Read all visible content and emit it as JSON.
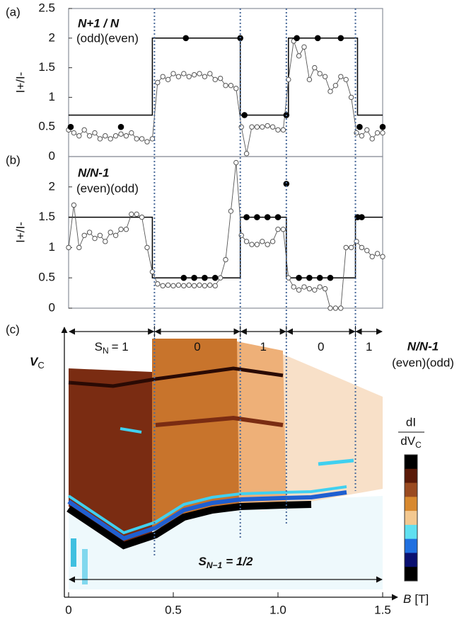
{
  "chart_data": [
    {
      "type": "line",
      "panel": "(a)",
      "ylabel": "I+/I-",
      "annotation": {
        "title": "N+1 / N",
        "subtitle": "(odd)(even)"
      },
      "xlim": [
        0,
        1.5
      ],
      "ylim": [
        0,
        2.5
      ],
      "yticks": [
        0,
        0.5,
        1,
        1.5,
        2,
        2.5
      ],
      "series": [
        {
          "style": "step",
          "color": "#000000",
          "x": [
            0,
            0.4,
            0.4,
            0.82,
            0.82,
            1.05,
            1.05,
            1.38,
            1.38,
            1.5
          ],
          "values": [
            0.7,
            0.7,
            2,
            2,
            0.7,
            0.7,
            2,
            2,
            0.7,
            0.7
          ]
        },
        {
          "style": "open",
          "color": "#555555",
          "x": [
            0,
            0.025,
            0.05,
            0.075,
            0.1,
            0.125,
            0.15,
            0.175,
            0.2,
            0.225,
            0.25,
            0.275,
            0.3,
            0.325,
            0.35,
            0.375,
            0.4,
            0.425,
            0.45,
            0.475,
            0.5,
            0.525,
            0.55,
            0.575,
            0.6,
            0.625,
            0.65,
            0.675,
            0.7,
            0.725,
            0.75,
            0.775,
            0.8,
            0.825,
            0.85,
            0.875,
            0.9,
            0.925,
            0.95,
            0.975,
            1.0,
            1.025,
            1.05,
            1.075,
            1.1,
            1.125,
            1.15,
            1.175,
            1.2,
            1.225,
            1.25,
            1.275,
            1.3,
            1.325,
            1.35,
            1.375,
            1.4,
            1.425,
            1.45,
            1.475,
            1.5
          ],
          "values": [
            0.45,
            0.4,
            0.35,
            0.45,
            0.35,
            0.4,
            0.3,
            0.35,
            0.3,
            0.35,
            0.38,
            0.35,
            0.4,
            0.3,
            0.3,
            0.25,
            0.3,
            1.25,
            1.35,
            1.3,
            1.4,
            1.35,
            1.4,
            1.35,
            1.38,
            1.4,
            1.35,
            1.4,
            1.3,
            1.32,
            1.2,
            1.2,
            1.15,
            0.5,
            0.05,
            0.5,
            0.5,
            0.5,
            0.52,
            0.5,
            0.45,
            0.45,
            1.3,
            1.95,
            1.7,
            1.85,
            1.3,
            1.5,
            1.4,
            1.35,
            1.1,
            1.2,
            1.35,
            1.3,
            1.0,
            0.4,
            0.35,
            0.45,
            0.3,
            0.4,
            0.4
          ]
        },
        {
          "style": "filled",
          "color": "#000000",
          "x": [
            0.01,
            0.25,
            0.56,
            0.82,
            0.84,
            1.04,
            1.09,
            1.19,
            1.3,
            1.39,
            1.5
          ],
          "values": [
            0.5,
            0.5,
            2,
            2,
            0.7,
            0.7,
            2,
            2,
            2,
            0.5,
            0.5
          ]
        }
      ]
    },
    {
      "type": "line",
      "panel": "(b)",
      "ylabel": "I+/I-",
      "annotation": {
        "title": "N/N-1",
        "subtitle": "(even)(odd)"
      },
      "xlim": [
        0,
        1.5
      ],
      "ylim": [
        0,
        2.5
      ],
      "yticks": [
        0,
        0.5,
        1,
        1.5,
        2
      ],
      "series": [
        {
          "style": "step",
          "color": "#000000",
          "x": [
            0,
            0.4,
            0.4,
            0.82,
            0.82,
            1.04,
            1.04,
            1.37,
            1.37,
            1.5
          ],
          "values": [
            1.5,
            1.5,
            0.5,
            0.5,
            1.5,
            1.5,
            0.5,
            0.5,
            1.5,
            1.5
          ]
        },
        {
          "style": "open",
          "color": "#555555",
          "x": [
            0,
            0.025,
            0.05,
            0.075,
            0.1,
            0.125,
            0.15,
            0.175,
            0.2,
            0.225,
            0.25,
            0.275,
            0.3,
            0.325,
            0.35,
            0.375,
            0.4,
            0.425,
            0.45,
            0.475,
            0.5,
            0.525,
            0.55,
            0.575,
            0.6,
            0.625,
            0.65,
            0.675,
            0.7,
            0.725,
            0.75,
            0.775,
            0.8,
            0.825,
            0.85,
            0.875,
            0.9,
            0.925,
            0.95,
            0.975,
            1.0,
            1.025,
            1.05,
            1.075,
            1.1,
            1.125,
            1.15,
            1.175,
            1.2,
            1.225,
            1.25,
            1.275,
            1.3,
            1.325,
            1.35,
            1.375,
            1.4,
            1.425,
            1.45,
            1.475,
            1.5
          ],
          "values": [
            1.0,
            1.7,
            1.0,
            1.2,
            1.25,
            1.15,
            1.2,
            1.1,
            1.25,
            1.2,
            1.3,
            1.3,
            1.55,
            1.55,
            1.5,
            1.0,
            0.6,
            0.4,
            0.37,
            0.38,
            0.37,
            0.38,
            0.37,
            0.38,
            0.37,
            0.38,
            0.37,
            0.38,
            0.37,
            0.5,
            0.8,
            1.6,
            2.4,
            1.2,
            1.1,
            1.05,
            1.05,
            1.1,
            1.05,
            1.1,
            1.3,
            1.3,
            0.5,
            0.35,
            0.3,
            0.35,
            0.32,
            0.3,
            0.35,
            0.32,
            0,
            0,
            0,
            1.0,
            1.0,
            1.1,
            1.0,
            0.95,
            0.85,
            0.9,
            0.85
          ]
        },
        {
          "style": "filled",
          "color": "#000000",
          "x": [
            0.55,
            0.6,
            0.65,
            0.7,
            0.85,
            0.9,
            0.95,
            1.0,
            1.04,
            1.1,
            1.15,
            1.2,
            1.25,
            1.38,
            1.4
          ],
          "values": [
            0.5,
            0.5,
            0.5,
            0.5,
            1.5,
            1.5,
            1.5,
            1.5,
            2.05,
            0.5,
            0.5,
            0.5,
            0.5,
            1.5,
            1.5
          ]
        }
      ]
    },
    {
      "type": "heatmap",
      "panel": "(c)",
      "xlim": [
        0,
        1.5
      ],
      "xticks": [
        0,
        0.5,
        {
          "value": 1,
          "label": "1.0"
        },
        1.5
      ],
      "xlabel": "B",
      "xunit": "[T]",
      "ylabel": {
        "text": "V",
        "sub": "C"
      },
      "boundaries": [
        0,
        0.41,
        0.82,
        1.04,
        1.37,
        1.5
      ],
      "region_symbol": {
        "text": "S",
        "sub": "N"
      },
      "regions": [
        "= 1",
        "0",
        "1",
        "0",
        "1"
      ],
      "ground_state": {
        "text": "S",
        "sub": "N−1",
        "suffix": "= 1/2"
      },
      "annotation": {
        "title": "N/N-1",
        "subtitle": "(even)(odd)"
      },
      "colorbar": {
        "label_top": "dI",
        "label_bottom": "dV",
        "label_sub": "C",
        "colors": [
          "#000000",
          "#5a1a08",
          "#9a4a20",
          "#d8892f",
          "#f3c890",
          "#60e0f0",
          "#2070e0",
          "#0a1070",
          "#000000"
        ]
      }
    }
  ]
}
